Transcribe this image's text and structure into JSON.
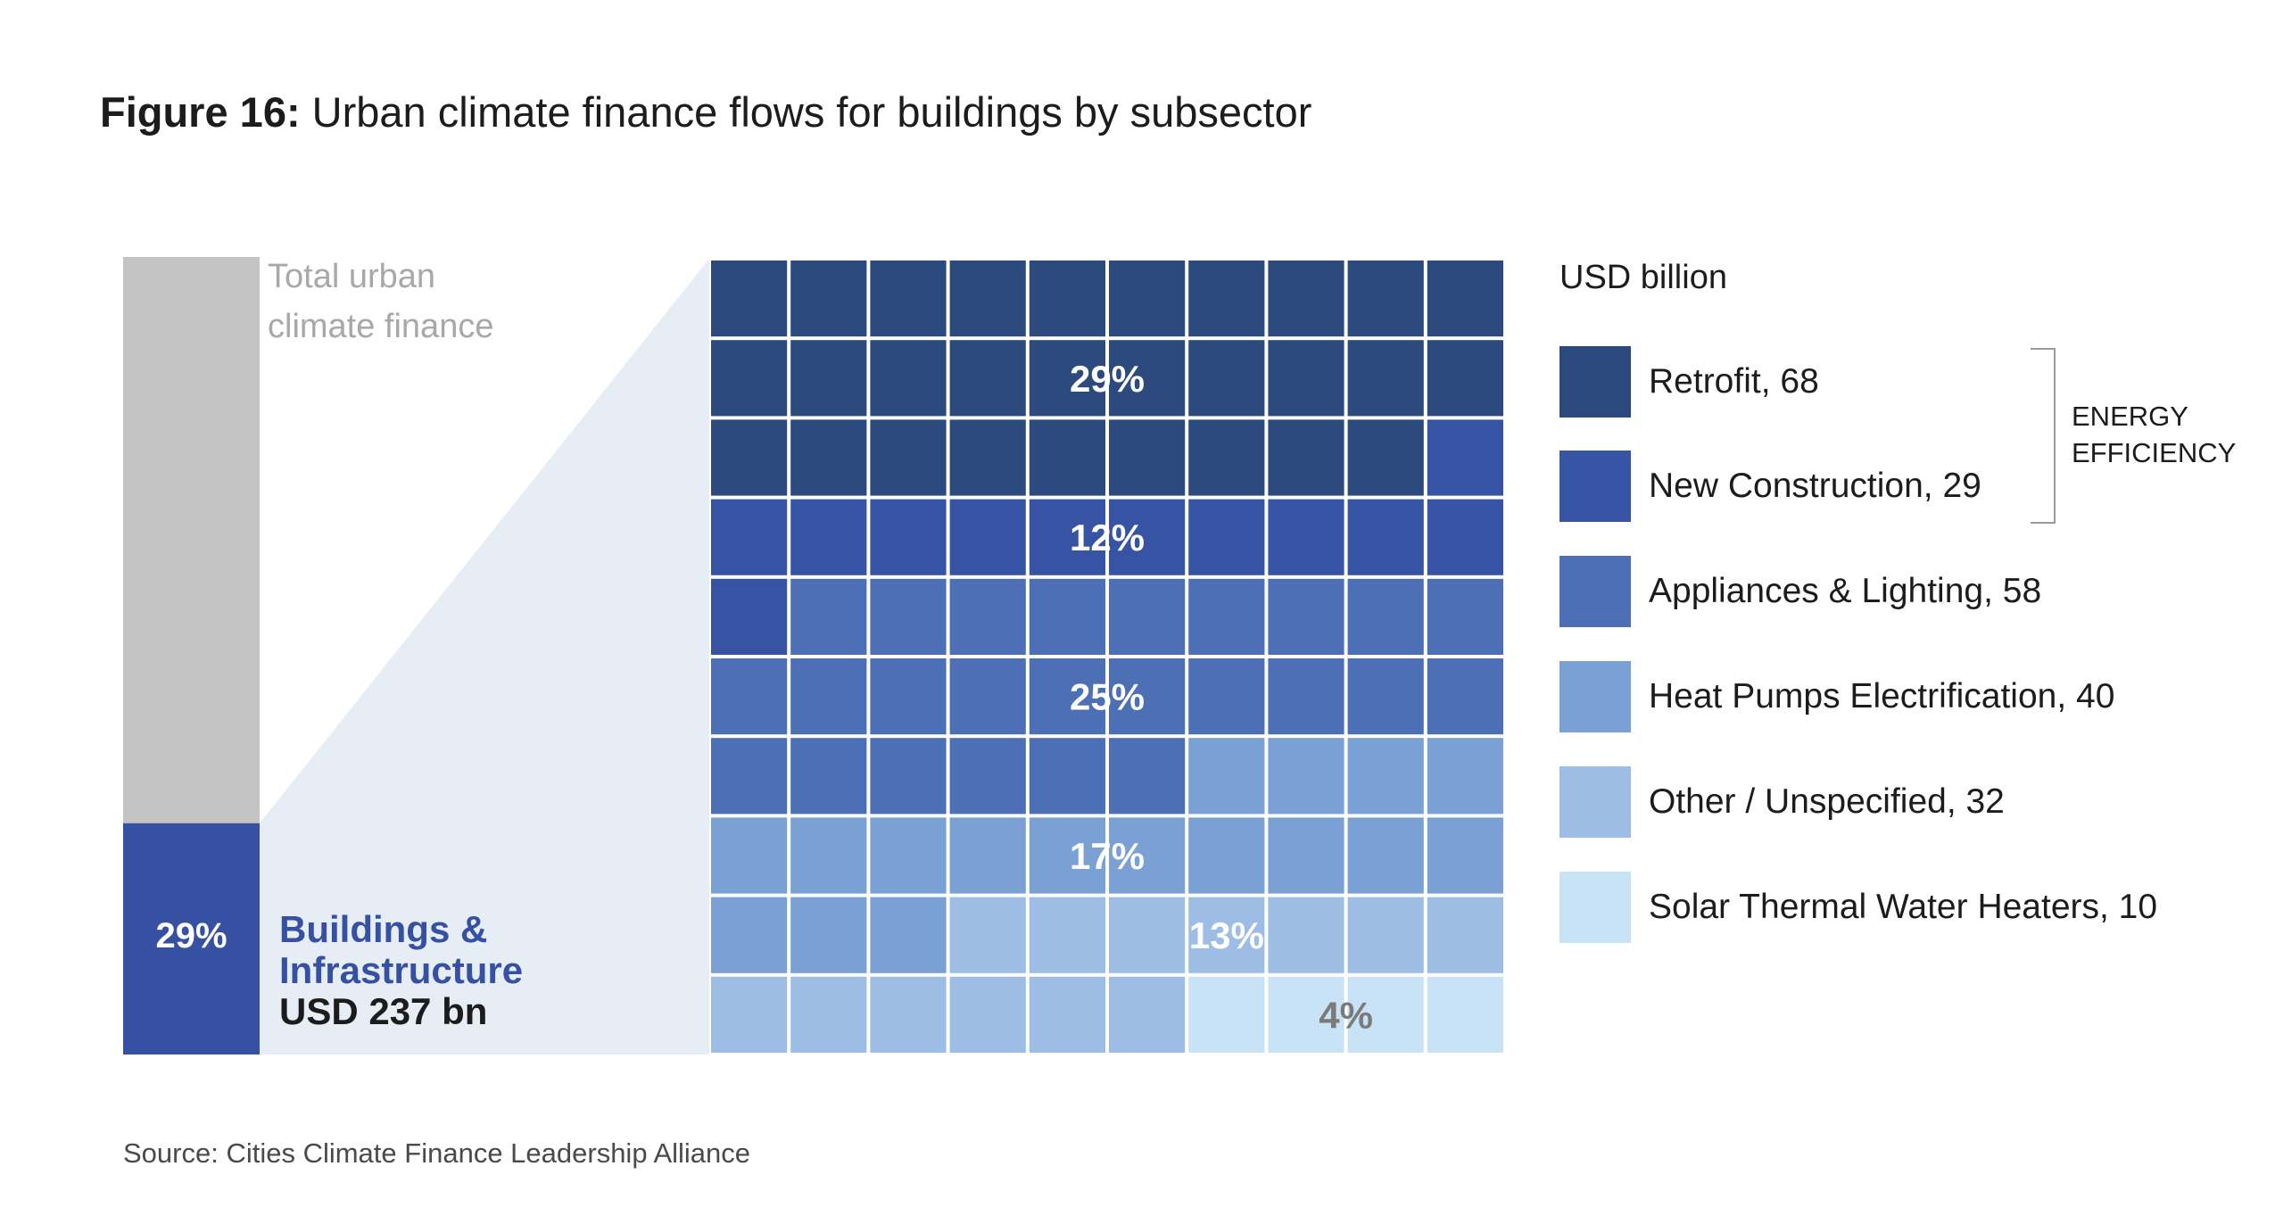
{
  "title": {
    "prefix": "Figure 16:",
    "text": "Urban climate finance flows for buildings by subsector"
  },
  "source": "Source: Cities Climate Finance Leadership Alliance",
  "colors": {
    "total_bar": "#c5c4c5",
    "buildings_bar": "#3650a3",
    "funnel": "#e6edf5",
    "text_blue": "#3650a3",
    "total_label": "#a8a8a8"
  },
  "chart_data": {
    "type": "waffle",
    "total_bar": {
      "label": "Total urban\nclimate finance",
      "share_pct": 29,
      "share_label": "29%",
      "highlight_label": "Buildings &\nInfrastructure",
      "highlight_value": "USD 237 bn"
    },
    "grid": {
      "rows": 10,
      "cols": 10
    },
    "unit_label": "USD billion",
    "series": [
      {
        "name": "Retrofit, 68",
        "value": 68,
        "squares": 29,
        "pct_label": "29%",
        "color": "#2c4a7d",
        "label_color": "#ffffff"
      },
      {
        "name": "New Construction, 29",
        "value": 29,
        "squares": 12,
        "pct_label": "12%",
        "color": "#3654a3",
        "label_color": "#ffffff"
      },
      {
        "name": "Appliances & Lighting, 58",
        "value": 58,
        "squares": 25,
        "pct_label": "25%",
        "color": "#4d6fb6",
        "label_color": "#ffffff"
      },
      {
        "name": "Heat Pumps Electrification, 40",
        "value": 40,
        "squares": 17,
        "pct_label": "17%",
        "color": "#7ba0d4",
        "label_color": "#ffffff"
      },
      {
        "name": "Other / Unspecified, 32",
        "value": 32,
        "squares": 13,
        "pct_label": "13%",
        "color": "#9dbde4",
        "label_color": "#ffffff"
      },
      {
        "name": "Solar Thermal Water Heaters, 10",
        "value": 10,
        "squares": 4,
        "pct_label": "4%",
        "color": "#c8e2f6",
        "label_color": "#7a7a7a"
      }
    ],
    "group": {
      "label": "ENERGY\nEFFICIENCY",
      "members": [
        "Retrofit, 68",
        "New Construction, 29"
      ]
    }
  }
}
